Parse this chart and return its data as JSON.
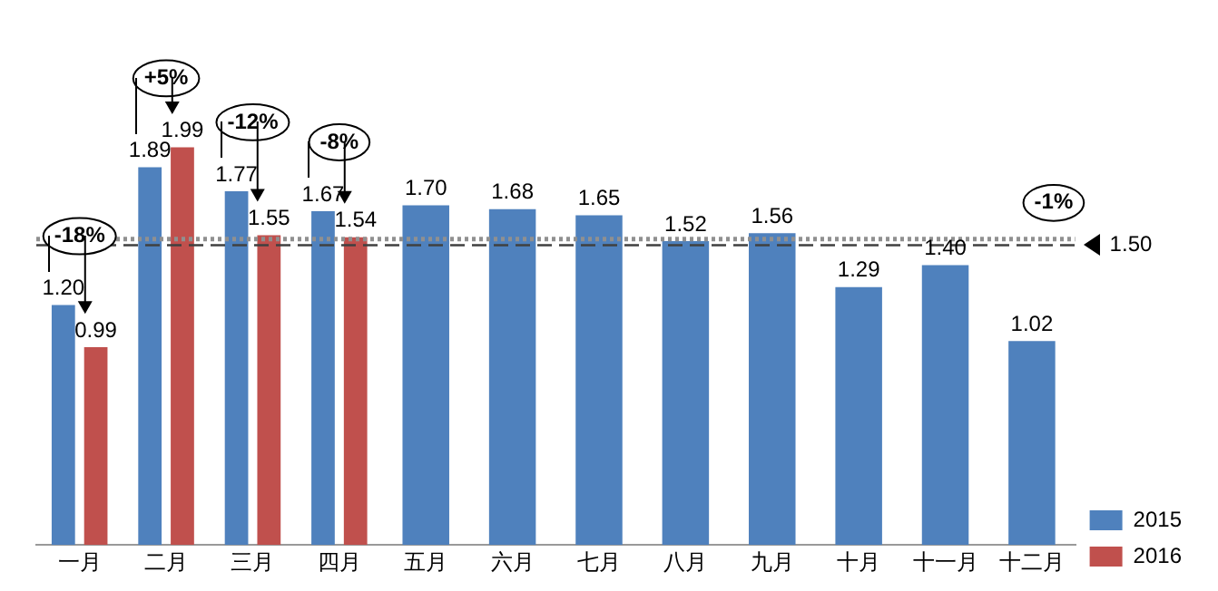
{
  "chart_data": {
    "type": "bar",
    "categories": [
      "一月",
      "二月",
      "三月",
      "四月",
      "五月",
      "六月",
      "七月",
      "八月",
      "九月",
      "十月",
      "十一月",
      "十二月"
    ],
    "series": [
      {
        "name": "2015",
        "color": "#4f81bd",
        "values": [
          1.2,
          1.89,
          1.77,
          1.67,
          1.7,
          1.68,
          1.65,
          1.52,
          1.56,
          1.29,
          1.4,
          1.02
        ],
        "value_labels": [
          "1.20",
          "1.89",
          "1.77",
          "1.67",
          "1.70",
          "1.68",
          "1.65",
          "1.52",
          "1.56",
          "1.29",
          "1.40",
          "1.02"
        ]
      },
      {
        "name": "2016",
        "color": "#c0504d",
        "values": [
          0.99,
          1.99,
          1.55,
          1.54,
          null,
          null,
          null,
          null,
          null,
          null,
          null,
          null
        ],
        "value_labels": [
          "0.99",
          "1.99",
          "1.55",
          "1.54",
          null,
          null,
          null,
          null,
          null,
          null,
          null,
          null
        ]
      }
    ],
    "tick_labels": "x",
    "grid": false,
    "legend": "bottom right",
    "ref_lines": [
      {
        "axis": "y",
        "value": 1.5,
        "label": "1.50",
        "line_style": "dashed",
        "color": "#404040"
      },
      {
        "axis": "y",
        "value": 1.53,
        "line_style": "dotted",
        "color": "#909090"
      }
    ],
    "annotations": [
      "-18%",
      "+5%",
      "-12%",
      "-8%",
      "-1%"
    ]
  }
}
